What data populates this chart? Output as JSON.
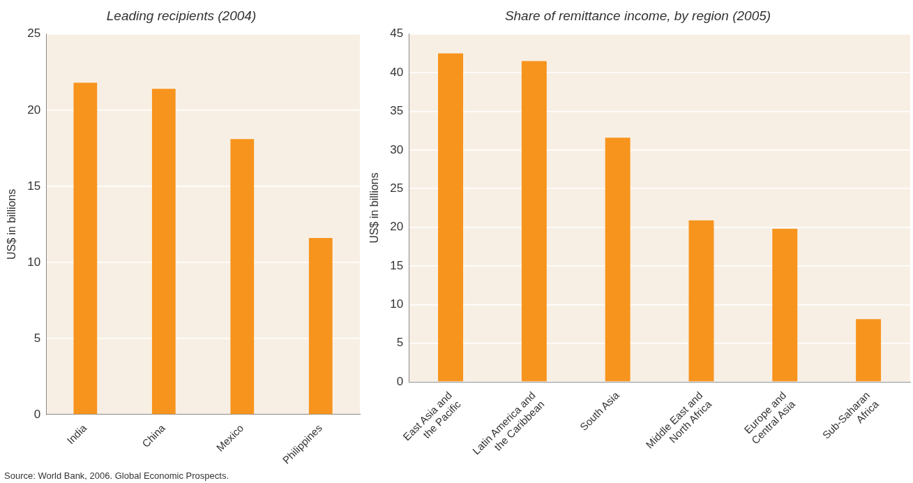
{
  "chart_data": [
    {
      "type": "bar",
      "title": "Leading recipients (2004)",
      "ylabel": "US$ in billions",
      "categories": [
        "India",
        "China",
        "Mexico",
        "Philippines"
      ],
      "values": [
        21.8,
        21.4,
        18.1,
        11.6
      ],
      "color": "#f7941d",
      "ylim": [
        0,
        25
      ],
      "yticks": [
        0,
        5,
        10,
        15,
        20,
        25
      ],
      "grid": "y",
      "annotations": [
        "Source: World Bank, 2006. Global Economic Prospects."
      ]
    },
    {
      "type": "bar",
      "title": "Share of remittance income, by region (2005)",
      "ylabel": "US$ in billions",
      "categories": [
        "East Asia and the Pacific",
        "Latin America and the Caribbean",
        "South Asia",
        "Middle East and North Africa",
        "Europe and Central Asia",
        "Sub-Saharan Africa"
      ],
      "values": [
        42.5,
        41.5,
        31.6,
        20.9,
        19.8,
        8.1
      ],
      "color": "#f7941d",
      "ylim": [
        0,
        45
      ],
      "yticks": [
        0,
        5,
        10,
        15,
        20,
        25,
        30,
        35,
        40,
        45
      ],
      "grid": "y"
    }
  ]
}
